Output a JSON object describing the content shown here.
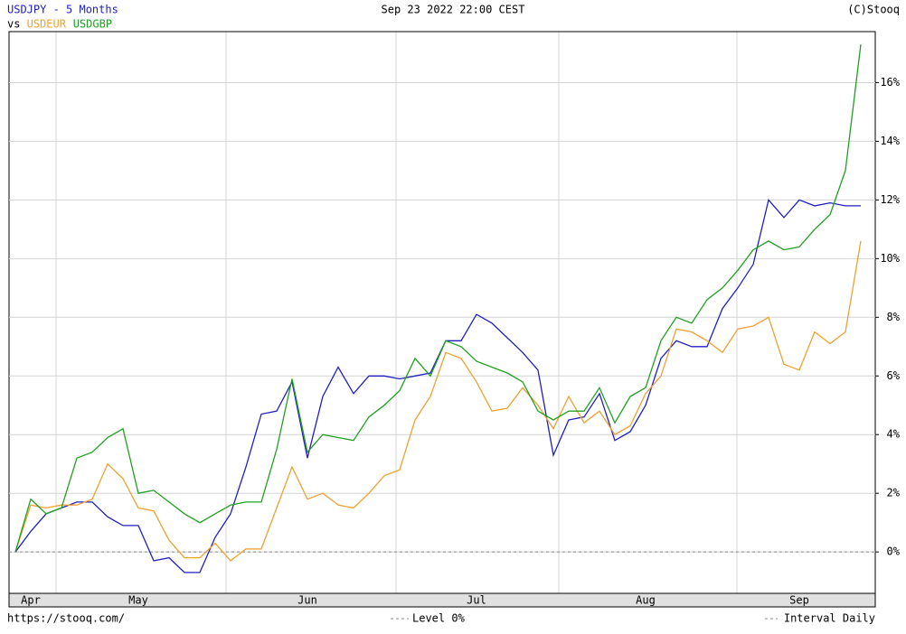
{
  "chart_data": {
    "type": "line",
    "title": "USDJPY - 5 Months",
    "date": "Sep 23 2022 22:00 CEST",
    "source": "(C)Stooq",
    "url": "https://stooq.com/",
    "legend_prefix": "vs",
    "interval": "Interval Daily",
    "level": {
      "value": 0,
      "label": "Level 0%"
    },
    "categories": [
      null,
      "Apr",
      null,
      null,
      null,
      null,
      null,
      null,
      "May",
      null,
      null,
      null,
      null,
      null,
      null,
      null,
      null,
      null,
      null,
      "Jun",
      null,
      null,
      null,
      null,
      null,
      null,
      null,
      null,
      null,
      null,
      "Jul",
      null,
      null,
      null,
      null,
      null,
      null,
      null,
      null,
      null,
      null,
      "Aug",
      null,
      null,
      null,
      null,
      null,
      null,
      null,
      null,
      null,
      "Sep",
      null,
      null,
      null,
      null
    ],
    "series": [
      {
        "name": "USDJPY",
        "color": "#2020c0",
        "values": [
          0,
          0.7,
          1.3,
          1.5,
          1.7,
          1.7,
          1.2,
          0.9,
          0.9,
          -0.3,
          -0.2,
          -0.7,
          -0.7,
          0.5,
          1.3,
          2.9,
          4.7,
          4.8,
          5.8,
          3.2,
          5.3,
          6.3,
          5.4,
          6.0,
          6.0,
          5.9,
          6.0,
          6.1,
          7.2,
          7.2,
          8.1,
          7.8,
          7.3,
          6.8,
          6.2,
          3.3,
          4.5,
          4.6,
          5.4,
          3.8,
          4.1,
          5.0,
          6.6,
          7.2,
          7.0,
          7.0,
          8.3,
          9.0,
          9.8,
          12.0,
          11.4,
          12.0,
          11.8,
          11.9,
          11.8,
          11.8
        ]
      },
      {
        "name": "USDEUR",
        "color": "#f0a030",
        "values": [
          0,
          1.6,
          1.5,
          1.6,
          1.6,
          1.8,
          3.0,
          2.5,
          1.5,
          1.4,
          0.4,
          -0.2,
          -0.2,
          0.3,
          -0.3,
          0.1,
          0.1,
          1.5,
          2.9,
          1.8,
          2.0,
          1.6,
          1.5,
          2.0,
          2.6,
          2.8,
          4.5,
          5.3,
          6.8,
          6.6,
          5.8,
          4.8,
          4.9,
          5.6,
          5.0,
          4.2,
          5.3,
          4.4,
          4.8,
          4.0,
          4.3,
          5.4,
          6.0,
          7.6,
          7.5,
          7.2,
          6.8,
          7.6,
          7.7,
          8.0,
          6.4,
          6.2,
          7.5,
          7.1,
          7.5,
          10.6
        ]
      },
      {
        "name": "USDGBP",
        "color": "#20a020",
        "values": [
          0,
          1.8,
          1.3,
          1.5,
          3.2,
          3.4,
          3.9,
          4.2,
          2.0,
          2.1,
          1.7,
          1.3,
          1.0,
          1.3,
          1.6,
          1.7,
          1.7,
          3.5,
          5.9,
          3.4,
          4.0,
          3.9,
          3.8,
          4.6,
          5.0,
          5.5,
          6.6,
          6.0,
          7.2,
          7.0,
          6.5,
          6.3,
          6.1,
          5.8,
          4.8,
          4.5,
          4.8,
          4.8,
          5.6,
          4.4,
          5.3,
          5.6,
          7.2,
          8.0,
          7.8,
          8.6,
          9.0,
          9.6,
          10.3,
          10.6,
          10.3,
          10.4,
          11.0,
          11.5,
          13.0,
          17.3
        ]
      }
    ],
    "ylim": [
      -1.35,
      18.2
    ],
    "yticks": [
      {
        "value": 0,
        "label": "0%"
      },
      {
        "value": 2,
        "label": "2%"
      },
      {
        "value": 4,
        "label": "4%"
      },
      {
        "value": 6,
        "label": "6%"
      },
      {
        "value": 8,
        "label": "8%"
      },
      {
        "value": 10,
        "label": "10%"
      },
      {
        "value": 12,
        "label": "12%"
      },
      {
        "value": 14,
        "label": "14%"
      },
      {
        "value": 16,
        "label": "16%"
      }
    ],
    "grid": true
  }
}
